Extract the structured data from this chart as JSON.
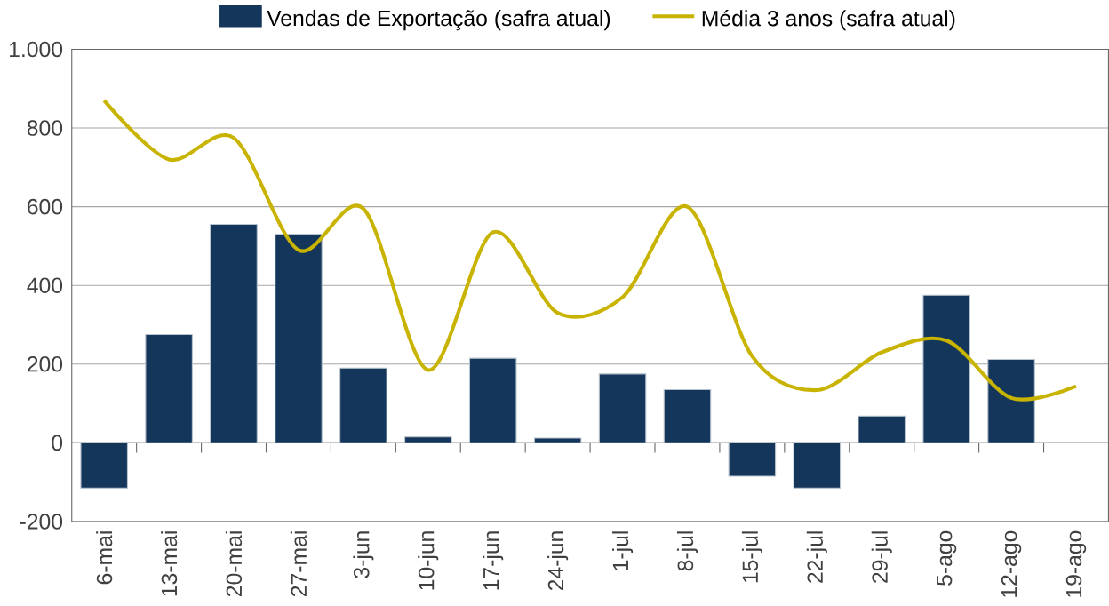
{
  "chart_data": {
    "type": "bar",
    "categories": [
      "6-mai",
      "13-mai",
      "20-mai",
      "27-mai",
      "3-jun",
      "10-jun",
      "17-jun",
      "24-jun",
      "1-jul",
      "8-jul",
      "15-jul",
      "22-jul",
      "29-jul",
      "5-ago",
      "12-ago",
      "19-ago"
    ],
    "series": [
      {
        "name": "Vendas de Exportação (safra atual)",
        "color": "#14365a",
        "values": [
          -115,
          275,
          555,
          530,
          190,
          15,
          215,
          12,
          175,
          135,
          -85,
          -115,
          68,
          375,
          212,
          null
        ]
      },
      {
        "name": "Média 3 anos (safra atual)",
        "type": "line",
        "color": "#c8b400",
        "values": [
          870,
          720,
          775,
          490,
          595,
          185,
          535,
          330,
          370,
          600,
          220,
          134,
          230,
          260,
          114,
          144
        ]
      }
    ],
    "ylim": [
      -200,
      1000
    ],
    "yticks": [
      {
        "value": -200,
        "label": "-200"
      },
      {
        "value": 0,
        "label": "0"
      },
      {
        "value": 200,
        "label": "200"
      },
      {
        "value": 400,
        "label": "400"
      },
      {
        "value": 600,
        "label": "600"
      },
      {
        "value": 800,
        "label": "800"
      },
      {
        "value": 1000,
        "label": "1.000"
      }
    ],
    "grid": "y",
    "legend": "top",
    "marker": "none",
    "line_style": "solid"
  }
}
